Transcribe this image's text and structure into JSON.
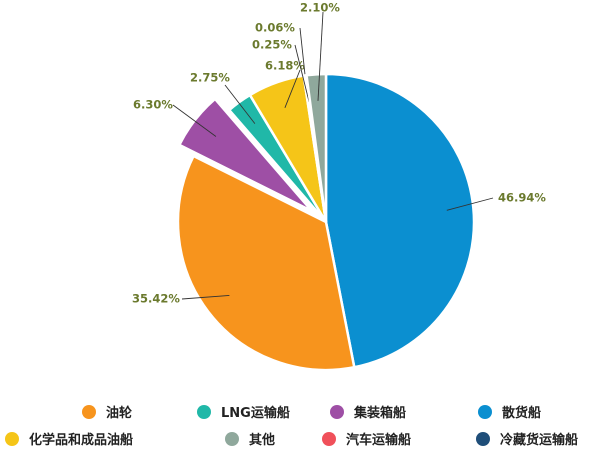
{
  "chart_data": {
    "type": "pie",
    "title": "",
    "series": [
      {
        "name": "散货船",
        "value": 46.94,
        "label": "46.94%",
        "color": "#0B8FD0",
        "exploded": false
      },
      {
        "name": "油轮",
        "value": 35.42,
        "label": "35.42%",
        "color": "#F7941D",
        "exploded": false
      },
      {
        "name": "集装箱船",
        "value": 6.3,
        "label": "6.30%",
        "color": "#9E4FA5",
        "exploded": true
      },
      {
        "name": "LNG运输船",
        "value": 2.75,
        "label": "2.75%",
        "color": "#20B8A8",
        "exploded": false
      },
      {
        "name": "化学品和成品油船",
        "value": 6.18,
        "label": "6.18%",
        "color": "#F5C518",
        "exploded": false
      },
      {
        "name": "冷藏货运输船",
        "value": 0.06,
        "label": "0.06%",
        "color": "#1F4E79",
        "exploded": false
      },
      {
        "name": "汽车运输船",
        "value": 0.25,
        "label": "0.25%",
        "color": "#F0505A",
        "exploded": false
      },
      {
        "name": "其他",
        "value": 2.1,
        "label": "2.10%",
        "color": "#8FA89C",
        "exploded": false
      }
    ],
    "label_color": "#6B7A2E",
    "legend_position": "bottom"
  },
  "legend": {
    "rows": [
      [
        "油轮",
        "LNG运输船",
        "集装箱船",
        "散货船"
      ],
      [
        "化学品和成品油船",
        "其他",
        "汽车运输船",
        "冷藏货运输船"
      ]
    ]
  }
}
